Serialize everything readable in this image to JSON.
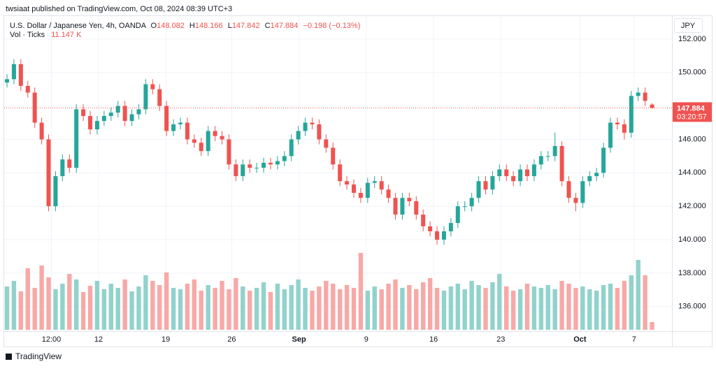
{
  "chart_data": {
    "type": "candlestick",
    "published": "twsiaat published on TradingView.com, Oct 08, 2024 08:39 UTC+3",
    "title": "U.S. Dollar / Japanese Yen, 4h, OANDA",
    "ohlc_labels": {
      "open": "O",
      "high": "H",
      "low": "L",
      "close": "C"
    },
    "change": "−0.198 (−0.13%)",
    "volume_title": "Vol · Ticks",
    "volume_label": "11.147 K",
    "currency": "JPY",
    "countdown": "03:20:57",
    "brand": "TradingView",
    "up_color": "#26a69a",
    "down_color": "#ef5350",
    "up_volume_color": "#92d2cc",
    "down_volume_color": "#f7a9a7",
    "open": [
      149.4,
      149.6,
      150.5,
      149.2,
      148.8,
      147.0,
      146.0,
      142.0,
      143.8,
      144.8,
      144.3,
      147.8,
      147.4,
      146.6,
      147.1,
      147.4,
      147.6,
      148.0,
      147.1,
      147.5,
      147.8,
      149.3,
      149.0,
      148.0,
      146.5,
      146.9,
      147.0,
      146.0,
      145.8,
      145.3,
      146.5,
      146.2,
      146.0,
      144.5,
      143.8,
      144.5,
      144.3,
      144.3,
      144.6,
      144.5,
      144.7,
      145.0,
      146.0,
      146.5,
      147.0,
      146.9,
      146.0,
      145.5,
      144.5,
      143.5,
      143.3,
      142.8,
      142.5,
      143.4,
      143.5,
      143.0,
      142.5,
      141.5,
      142.5,
      142.3,
      141.5,
      140.8,
      140.5,
      140.0,
      140.5,
      141.0,
      142.0,
      142.0,
      142.5,
      143.5,
      143.0,
      143.8,
      144.2,
      143.8,
      143.5,
      144.2,
      143.8,
      144.5,
      145.0,
      145.0,
      145.6,
      143.5,
      142.5,
      142.2,
      143.5,
      143.8,
      144.0,
      145.5,
      147.0,
      146.9,
      146.4,
      148.6,
      148.8,
      148.082
    ],
    "high": [
      149.9,
      150.8,
      150.8,
      149.5,
      149.1,
      147.3,
      146.3,
      144.1,
      145.1,
      145.1,
      148.1,
      148.1,
      147.7,
      147.4,
      147.7,
      147.9,
      148.3,
      148.3,
      147.8,
      148.1,
      149.6,
      149.6,
      149.3,
      148.3,
      147.2,
      147.3,
      147.3,
      146.3,
      146.1,
      146.8,
      146.8,
      146.5,
      146.3,
      144.8,
      144.8,
      144.8,
      144.6,
      144.9,
      144.9,
      145.0,
      145.3,
      146.3,
      146.8,
      147.3,
      147.3,
      147.2,
      146.3,
      145.8,
      144.8,
      143.8,
      143.6,
      143.1,
      143.7,
      143.8,
      143.8,
      143.3,
      142.8,
      142.8,
      142.8,
      142.6,
      141.8,
      141.1,
      140.8,
      140.8,
      141.3,
      142.3,
      142.3,
      142.8,
      143.8,
      143.8,
      144.1,
      144.5,
      144.5,
      144.1,
      144.5,
      144.5,
      144.8,
      145.3,
      145.3,
      146.4,
      145.9,
      143.8,
      142.8,
      143.8,
      144.1,
      144.3,
      145.8,
      147.3,
      147.3,
      147.2,
      148.9,
      149.1,
      149.1,
      148.166
    ],
    "low": [
      149.1,
      149.3,
      148.9,
      148.5,
      146.7,
      145.7,
      141.7,
      141.7,
      143.5,
      144.0,
      144.0,
      147.1,
      146.3,
      146.3,
      146.8,
      147.1,
      147.3,
      146.8,
      146.8,
      147.2,
      147.5,
      148.7,
      147.7,
      146.2,
      146.2,
      146.6,
      145.7,
      145.5,
      145.0,
      145.0,
      145.9,
      145.7,
      144.2,
      143.5,
      143.5,
      144.0,
      144.0,
      144.0,
      144.2,
      144.2,
      144.4,
      144.7,
      145.7,
      146.2,
      146.6,
      145.7,
      145.2,
      144.2,
      143.2,
      143.0,
      142.5,
      142.2,
      142.2,
      143.1,
      142.7,
      142.2,
      141.2,
      141.2,
      142.0,
      141.2,
      140.5,
      140.2,
      139.7,
      139.7,
      140.2,
      140.7,
      141.7,
      141.7,
      142.2,
      142.7,
      142.7,
      143.5,
      143.5,
      143.2,
      143.2,
      143.5,
      143.5,
      144.2,
      144.7,
      144.7,
      143.2,
      142.2,
      141.7,
      141.9,
      143.2,
      143.5,
      143.7,
      145.2,
      146.6,
      146.0,
      146.1,
      148.3,
      148.0,
      147.842
    ],
    "close": [
      149.6,
      150.5,
      149.2,
      148.8,
      147.0,
      146.0,
      142.0,
      143.8,
      144.8,
      144.3,
      147.8,
      147.4,
      146.6,
      147.1,
      147.4,
      147.6,
      148.0,
      147.1,
      147.5,
      147.8,
      149.3,
      149.0,
      148.0,
      146.5,
      146.9,
      147.0,
      146.0,
      145.8,
      145.3,
      146.5,
      146.2,
      146.0,
      144.5,
      143.8,
      144.5,
      144.3,
      144.3,
      144.6,
      144.5,
      144.7,
      145.0,
      146.0,
      146.5,
      147.0,
      146.9,
      146.0,
      145.5,
      144.5,
      143.5,
      143.3,
      142.8,
      142.5,
      143.4,
      143.5,
      143.0,
      142.5,
      141.5,
      142.5,
      142.3,
      141.5,
      140.8,
      140.5,
      140.0,
      140.5,
      141.0,
      142.0,
      142.0,
      142.5,
      143.5,
      143.0,
      143.8,
      144.2,
      143.8,
      143.5,
      144.2,
      143.8,
      144.5,
      145.0,
      145.0,
      145.6,
      143.5,
      142.5,
      142.2,
      143.5,
      143.8,
      144.0,
      145.5,
      147.0,
      146.9,
      146.4,
      148.6,
      148.8,
      148.3,
      147.884
    ],
    "volume": [
      62,
      70,
      55,
      88,
      60,
      92,
      75,
      58,
      66,
      80,
      72,
      54,
      63,
      70,
      58,
      66,
      60,
      72,
      55,
      62,
      78,
      70,
      64,
      82,
      60,
      58,
      66,
      72,
      56,
      64,
      60,
      70,
      58,
      74,
      62,
      56,
      60,
      68,
      54,
      66,
      58,
      64,
      72,
      60,
      56,
      62,
      70,
      66,
      58,
      64,
      60,
      110,
      56,
      62,
      58,
      66,
      72,
      60,
      64,
      58,
      68,
      74,
      60,
      56,
      62,
      66,
      58,
      70,
      64,
      60,
      68,
      80,
      62,
      56,
      58,
      66,
      62,
      60,
      64,
      58,
      70,
      66,
      60,
      62,
      58,
      56,
      64,
      66,
      60,
      70,
      78,
      100,
      78,
      11.147
    ],
    "ylim": [
      134.61,
      153.0
    ],
    "volume_ylim": [
      0,
      120
    ],
    "yticks": [
      {
        "value": 136,
        "label": "136.000"
      },
      {
        "value": 138,
        "label": "138.000"
      },
      {
        "value": 140,
        "label": "140.000"
      },
      {
        "value": 142,
        "label": "142.000"
      },
      {
        "value": 144,
        "label": "144.000"
      },
      {
        "value": 146,
        "label": "146.000"
      },
      {
        "value": 148,
        "label": "148.000"
      },
      {
        "value": 150,
        "label": "150.000"
      },
      {
        "value": 152,
        "label": "152.000"
      }
    ],
    "xticks": [
      {
        "value": 6.4,
        "label": "12:00"
      },
      {
        "value": 13.2,
        "label": "12"
      },
      {
        "value": 22.9,
        "label": "19"
      },
      {
        "value": 32.4,
        "label": "26"
      },
      {
        "value": 42.1,
        "label": "Sep"
      },
      {
        "value": 51.8,
        "label": "9"
      },
      {
        "value": 61.5,
        "label": "16"
      },
      {
        "value": 71.2,
        "label": "23"
      },
      {
        "value": 82.6,
        "label": "Oct"
      },
      {
        "value": 90.4,
        "label": "7"
      }
    ],
    "grid": true
  }
}
